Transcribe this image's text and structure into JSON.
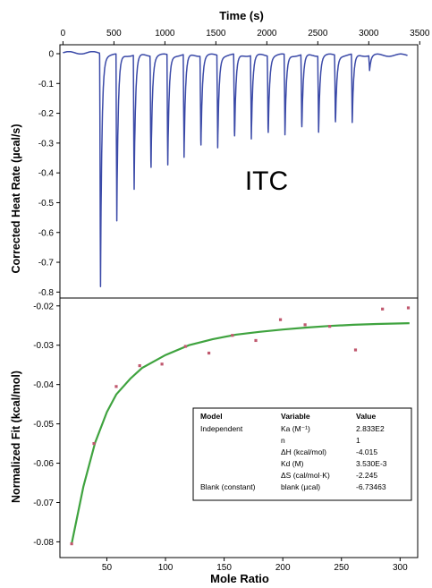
{
  "chart_data": [
    {
      "type": "line",
      "xlabel": "Time (s)",
      "ylabel": "Corrected Heat Rate (µcal/s)",
      "annotation": "ITC",
      "xlim": [
        -30,
        3480
      ],
      "ylim": [
        -0.82,
        0.03
      ],
      "xticks": [
        0,
        500,
        1000,
        1500,
        2000,
        2500,
        3000,
        3500
      ],
      "yticks": [
        0,
        -0.1,
        -0.2,
        -0.3,
        -0.4,
        -0.5,
        -0.6,
        -0.7,
        -0.8
      ],
      "ytick_labels": [
        "0",
        "-0.1",
        "-0.2",
        "-0.3",
        "-0.4",
        "-0.5",
        "-0.6",
        "-0.7",
        "-0.8"
      ],
      "line_color": "#3b4aa8",
      "injections": [
        {
          "t": 360,
          "depth": -0.775
        },
        {
          "t": 520,
          "depth": -0.56
        },
        {
          "t": 690,
          "depth": -0.45
        },
        {
          "t": 855,
          "depth": -0.4
        },
        {
          "t": 1020,
          "depth": -0.37
        },
        {
          "t": 1180,
          "depth": -0.345
        },
        {
          "t": 1345,
          "depth": -0.32
        },
        {
          "t": 1510,
          "depth": -0.31
        },
        {
          "t": 1675,
          "depth": -0.295
        },
        {
          "t": 1840,
          "depth": -0.28
        },
        {
          "t": 2005,
          "depth": -0.275
        },
        {
          "t": 2170,
          "depth": -0.27
        },
        {
          "t": 2335,
          "depth": -0.26
        },
        {
          "t": 2500,
          "depth": -0.255
        },
        {
          "t": 2665,
          "depth": -0.24
        },
        {
          "t": 2830,
          "depth": -0.23
        },
        {
          "t": 3000,
          "depth": -0.05
        }
      ]
    },
    {
      "type": "scatter",
      "xlabel": "Mole Ratio",
      "ylabel": "Normalized Fit (kcal/mol)",
      "xlim": [
        10,
        315
      ],
      "ylim": [
        -0.084,
        -0.018
      ],
      "xticks": [
        50,
        100,
        150,
        200,
        250,
        300
      ],
      "yticks": [
        -0.02,
        -0.03,
        -0.04,
        -0.05,
        -0.06,
        -0.07,
        -0.08
      ],
      "ytick_labels": [
        "-0.02",
        "-0.03",
        "-0.04",
        "-0.05",
        "-0.06",
        "-0.07",
        "-0.08"
      ],
      "points_color": "#c0586e",
      "fit_color": "#3fa33f",
      "points": [
        {
          "x": 20,
          "y": -0.0805
        },
        {
          "x": 39,
          "y": -0.055
        },
        {
          "x": 58,
          "y": -0.0405
        },
        {
          "x": 78,
          "y": -0.0352
        },
        {
          "x": 97,
          "y": -0.0348
        },
        {
          "x": 117,
          "y": -0.0303
        },
        {
          "x": 137,
          "y": -0.032
        },
        {
          "x": 157,
          "y": -0.0275
        },
        {
          "x": 177,
          "y": -0.0288
        },
        {
          "x": 198,
          "y": -0.0235
        },
        {
          "x": 219,
          "y": -0.0248
        },
        {
          "x": 240,
          "y": -0.0252
        },
        {
          "x": 262,
          "y": -0.0312
        },
        {
          "x": 285,
          "y": -0.0208
        },
        {
          "x": 307,
          "y": -0.0205
        }
      ],
      "fit": [
        {
          "x": 20,
          "y": -0.0805
        },
        {
          "x": 30,
          "y": -0.066
        },
        {
          "x": 40,
          "y": -0.0548
        },
        {
          "x": 50,
          "y": -0.047
        },
        {
          "x": 58,
          "y": -0.0425
        },
        {
          "x": 70,
          "y": -0.0385
        },
        {
          "x": 80,
          "y": -0.0358
        },
        {
          "x": 100,
          "y": -0.0325
        },
        {
          "x": 120,
          "y": -0.03
        },
        {
          "x": 140,
          "y": -0.0285
        },
        {
          "x": 160,
          "y": -0.0273
        },
        {
          "x": 180,
          "y": -0.0266
        },
        {
          "x": 200,
          "y": -0.026
        },
        {
          "x": 220,
          "y": -0.0255
        },
        {
          "x": 240,
          "y": -0.0251
        },
        {
          "x": 260,
          "y": -0.0248
        },
        {
          "x": 280,
          "y": -0.0246
        },
        {
          "x": 308,
          "y": -0.0244
        }
      ],
      "fit_table": {
        "headers": [
          "Model",
          "Variable",
          "Value"
        ],
        "rows": [
          [
            "Independent",
            "Ka (M⁻¹)",
            "2.833E2"
          ],
          [
            "",
            "n",
            "1"
          ],
          [
            "",
            "ΔH (kcal/mol)",
            "-4.015"
          ],
          [
            "",
            "Kd (M)",
            "3.530E-3"
          ],
          [
            "",
            "ΔS (cal/mol·K)",
            "-2.245"
          ],
          [
            "Blank (constant)",
            "blank (µcal)",
            "-6.73463"
          ]
        ]
      }
    }
  ]
}
